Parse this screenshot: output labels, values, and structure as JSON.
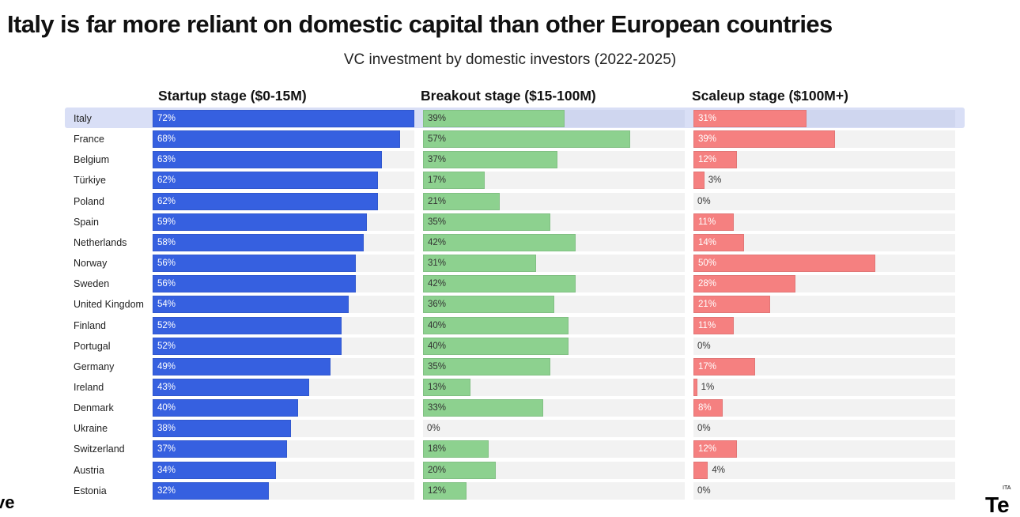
{
  "chart_data": {
    "type": "bar",
    "orientation": "horizontal",
    "title": "Italy is far more reliant on domestic capital than other European countries",
    "subtitle": "VC investment by domestic investors (2022-2025)",
    "categories": [
      "Italy",
      "France",
      "Belgium",
      "Türkiye",
      "Poland",
      "Spain",
      "Netherlands",
      "Norway",
      "Sweden",
      "United Kingdom",
      "Finland",
      "Portugal",
      "Germany",
      "Ireland",
      "Denmark",
      "Ukraine",
      "Switzerland",
      "Austria",
      "Estonia"
    ],
    "highlighted_category": "Italy",
    "xlim": [
      0,
      72
    ],
    "unit": "%",
    "grid": false,
    "series": [
      {
        "name": "Startup stage ($0-15M)",
        "color": "#3660e0",
        "label_color": "#ffffff",
        "values": [
          72,
          68,
          63,
          62,
          62,
          59,
          58,
          56,
          56,
          54,
          52,
          52,
          49,
          43,
          40,
          38,
          37,
          34,
          32
        ]
      },
      {
        "name": "Breakout stage ($15-100M)",
        "color": "#8dd18f",
        "label_color": "#333333",
        "values": [
          39,
          57,
          37,
          17,
          21,
          35,
          42,
          31,
          42,
          36,
          40,
          40,
          35,
          13,
          33,
          0,
          18,
          20,
          12
        ]
      },
      {
        "name": "Scaleup stage ($100M+)",
        "color": "#f58080",
        "label_color": "#ffffff",
        "values": [
          31,
          39,
          12,
          3,
          0,
          11,
          14,
          50,
          28,
          21,
          11,
          0,
          17,
          1,
          8,
          0,
          12,
          4,
          0
        ]
      }
    ]
  },
  "logos": {
    "left": "e ve",
    "right": "Te",
    "right_small": "ITA"
  }
}
